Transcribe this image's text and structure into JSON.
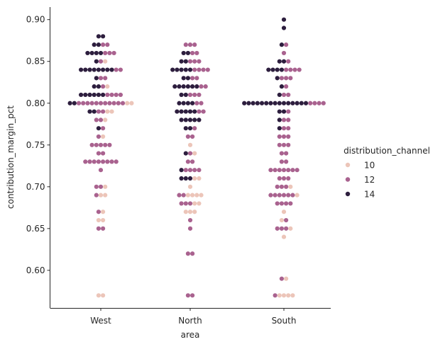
{
  "chart_data": {
    "type": "swarm",
    "xlabel": "area",
    "ylabel": "contribution_margin_pct",
    "categories": [
      "West",
      "North",
      "South"
    ],
    "ylim": [
      0.555,
      0.915
    ],
    "yticks": [
      0.6,
      0.65,
      0.7,
      0.75,
      0.8,
      0.85,
      0.9
    ],
    "ytick_labels": [
      "0.60",
      "0.65",
      "0.70",
      "0.75",
      "0.80",
      "0.85",
      "0.90"
    ],
    "legend": {
      "title": "distribution_channel",
      "placement": "right",
      "entries": [
        {
          "label": "10",
          "color": "#ecc5b9"
        },
        {
          "label": "12",
          "color": "#a9628f"
        },
        {
          "label": "14",
          "color": "#2d1e3e"
        }
      ]
    },
    "colors": {
      "10": "#ecc5b9",
      "12": "#a9628f",
      "14": "#2d1e3e"
    },
    "points": {
      "West": [
        [
          0.88,
          14
        ],
        [
          0.88,
          14
        ],
        [
          0.87,
          14
        ],
        [
          0.87,
          14
        ],
        [
          0.87,
          12
        ],
        [
          0.87,
          12
        ],
        [
          0.86,
          14
        ],
        [
          0.86,
          14
        ],
        [
          0.86,
          14
        ],
        [
          0.86,
          14
        ],
        [
          0.86,
          12
        ],
        [
          0.86,
          12
        ],
        [
          0.86,
          12
        ],
        [
          0.85,
          14
        ],
        [
          0.85,
          12
        ],
        [
          0.85,
          10
        ],
        [
          0.84,
          14
        ],
        [
          0.84,
          14
        ],
        [
          0.84,
          14
        ],
        [
          0.84,
          14
        ],
        [
          0.84,
          14
        ],
        [
          0.84,
          14
        ],
        [
          0.84,
          14
        ],
        [
          0.84,
          14
        ],
        [
          0.84,
          12
        ],
        [
          0.84,
          12
        ],
        [
          0.83,
          14
        ],
        [
          0.83,
          12
        ],
        [
          0.83,
          12
        ],
        [
          0.82,
          14
        ],
        [
          0.82,
          14
        ],
        [
          0.82,
          12
        ],
        [
          0.82,
          10
        ],
        [
          0.81,
          14
        ],
        [
          0.81,
          14
        ],
        [
          0.81,
          14
        ],
        [
          0.81,
          14
        ],
        [
          0.81,
          14
        ],
        [
          0.81,
          14
        ],
        [
          0.81,
          12
        ],
        [
          0.81,
          12
        ],
        [
          0.81,
          12
        ],
        [
          0.81,
          12
        ],
        [
          0.8,
          14
        ],
        [
          0.8,
          14
        ],
        [
          0.8,
          12
        ],
        [
          0.8,
          12
        ],
        [
          0.8,
          12
        ],
        [
          0.8,
          12
        ],
        [
          0.8,
          12
        ],
        [
          0.8,
          12
        ],
        [
          0.8,
          12
        ],
        [
          0.8,
          12
        ],
        [
          0.8,
          12
        ],
        [
          0.8,
          12
        ],
        [
          0.8,
          12
        ],
        [
          0.8,
          10
        ],
        [
          0.8,
          10
        ],
        [
          0.79,
          14
        ],
        [
          0.79,
          14
        ],
        [
          0.79,
          12
        ],
        [
          0.79,
          12
        ],
        [
          0.79,
          10
        ],
        [
          0.79,
          10
        ],
        [
          0.78,
          12
        ],
        [
          0.78,
          12
        ],
        [
          0.78,
          10
        ],
        [
          0.77,
          14
        ],
        [
          0.77,
          12
        ],
        [
          0.76,
          12
        ],
        [
          0.76,
          10
        ],
        [
          0.75,
          12
        ],
        [
          0.75,
          12
        ],
        [
          0.75,
          12
        ],
        [
          0.75,
          12
        ],
        [
          0.75,
          12
        ],
        [
          0.74,
          12
        ],
        [
          0.74,
          12
        ],
        [
          0.73,
          12
        ],
        [
          0.73,
          12
        ],
        [
          0.73,
          12
        ],
        [
          0.73,
          12
        ],
        [
          0.73,
          12
        ],
        [
          0.73,
          12
        ],
        [
          0.73,
          12
        ],
        [
          0.73,
          12
        ],
        [
          0.72,
          12
        ],
        [
          0.7,
          12
        ],
        [
          0.7,
          12
        ],
        [
          0.7,
          10
        ],
        [
          0.69,
          12
        ],
        [
          0.69,
          10
        ],
        [
          0.69,
          10
        ],
        [
          0.67,
          12
        ],
        [
          0.67,
          10
        ],
        [
          0.66,
          10
        ],
        [
          0.66,
          10
        ],
        [
          0.65,
          12
        ],
        [
          0.65,
          12
        ],
        [
          0.57,
          10
        ],
        [
          0.57,
          10
        ]
      ],
      "North": [
        [
          0.87,
          12
        ],
        [
          0.87,
          12
        ],
        [
          0.87,
          12
        ],
        [
          0.86,
          14
        ],
        [
          0.86,
          14
        ],
        [
          0.86,
          12
        ],
        [
          0.86,
          12
        ],
        [
          0.85,
          14
        ],
        [
          0.85,
          14
        ],
        [
          0.85,
          12
        ],
        [
          0.85,
          12
        ],
        [
          0.85,
          12
        ],
        [
          0.84,
          14
        ],
        [
          0.84,
          14
        ],
        [
          0.84,
          14
        ],
        [
          0.84,
          14
        ],
        [
          0.84,
          14
        ],
        [
          0.84,
          12
        ],
        [
          0.84,
          12
        ],
        [
          0.84,
          12
        ],
        [
          0.84,
          12
        ],
        [
          0.83,
          14
        ],
        [
          0.83,
          14
        ],
        [
          0.83,
          12
        ],
        [
          0.83,
          12
        ],
        [
          0.82,
          14
        ],
        [
          0.82,
          14
        ],
        [
          0.82,
          14
        ],
        [
          0.82,
          14
        ],
        [
          0.82,
          14
        ],
        [
          0.82,
          14
        ],
        [
          0.82,
          12
        ],
        [
          0.82,
          12
        ],
        [
          0.81,
          14
        ],
        [
          0.81,
          14
        ],
        [
          0.81,
          12
        ],
        [
          0.81,
          12
        ],
        [
          0.81,
          12
        ],
        [
          0.8,
          14
        ],
        [
          0.8,
          14
        ],
        [
          0.8,
          14
        ],
        [
          0.8,
          14
        ],
        [
          0.8,
          12
        ],
        [
          0.8,
          12
        ],
        [
          0.79,
          14
        ],
        [
          0.79,
          14
        ],
        [
          0.79,
          14
        ],
        [
          0.79,
          14
        ],
        [
          0.79,
          14
        ],
        [
          0.79,
          12
        ],
        [
          0.79,
          12
        ],
        [
          0.78,
          14
        ],
        [
          0.78,
          14
        ],
        [
          0.78,
          14
        ],
        [
          0.78,
          14
        ],
        [
          0.78,
          14
        ],
        [
          0.77,
          14
        ],
        [
          0.77,
          14
        ],
        [
          0.77,
          12
        ],
        [
          0.76,
          12
        ],
        [
          0.76,
          12
        ],
        [
          0.75,
          10
        ],
        [
          0.74,
          14
        ],
        [
          0.74,
          12
        ],
        [
          0.74,
          10
        ],
        [
          0.73,
          12
        ],
        [
          0.73,
          12
        ],
        [
          0.72,
          14
        ],
        [
          0.72,
          12
        ],
        [
          0.72,
          12
        ],
        [
          0.72,
          12
        ],
        [
          0.72,
          12
        ],
        [
          0.71,
          14
        ],
        [
          0.71,
          14
        ],
        [
          0.71,
          14
        ],
        [
          0.71,
          10
        ],
        [
          0.71,
          10
        ],
        [
          0.7,
          10
        ],
        [
          0.69,
          12
        ],
        [
          0.69,
          12
        ],
        [
          0.69,
          10
        ],
        [
          0.69,
          10
        ],
        [
          0.69,
          10
        ],
        [
          0.69,
          10
        ],
        [
          0.68,
          12
        ],
        [
          0.68,
          12
        ],
        [
          0.68,
          12
        ],
        [
          0.68,
          10
        ],
        [
          0.68,
          10
        ],
        [
          0.67,
          10
        ],
        [
          0.67,
          10
        ],
        [
          0.67,
          10
        ],
        [
          0.66,
          12
        ],
        [
          0.65,
          12
        ],
        [
          0.62,
          12
        ],
        [
          0.62,
          12
        ],
        [
          0.57,
          12
        ],
        [
          0.57,
          12
        ]
      ],
      "South": [
        [
          0.9,
          14
        ],
        [
          0.89,
          14
        ],
        [
          0.87,
          14
        ],
        [
          0.87,
          12
        ],
        [
          0.86,
          12
        ],
        [
          0.85,
          14
        ],
        [
          0.85,
          14
        ],
        [
          0.85,
          12
        ],
        [
          0.84,
          14
        ],
        [
          0.84,
          14
        ],
        [
          0.84,
          14
        ],
        [
          0.84,
          14
        ],
        [
          0.84,
          12
        ],
        [
          0.84,
          12
        ],
        [
          0.84,
          12
        ],
        [
          0.84,
          12
        ],
        [
          0.83,
          14
        ],
        [
          0.83,
          12
        ],
        [
          0.83,
          12
        ],
        [
          0.83,
          12
        ],
        [
          0.82,
          14
        ],
        [
          0.82,
          12
        ],
        [
          0.81,
          14
        ],
        [
          0.81,
          12
        ],
        [
          0.81,
          12
        ],
        [
          0.8,
          14
        ],
        [
          0.8,
          14
        ],
        [
          0.8,
          14
        ],
        [
          0.8,
          14
        ],
        [
          0.8,
          14
        ],
        [
          0.8,
          14
        ],
        [
          0.8,
          14
        ],
        [
          0.8,
          14
        ],
        [
          0.8,
          14
        ],
        [
          0.8,
          14
        ],
        [
          0.8,
          14
        ],
        [
          0.8,
          14
        ],
        [
          0.8,
          14
        ],
        [
          0.8,
          14
        ],
        [
          0.8,
          14
        ],
        [
          0.8,
          12
        ],
        [
          0.8,
          12
        ],
        [
          0.8,
          12
        ],
        [
          0.8,
          12
        ],
        [
          0.79,
          14
        ],
        [
          0.79,
          14
        ],
        [
          0.79,
          12
        ],
        [
          0.78,
          14
        ],
        [
          0.78,
          12
        ],
        [
          0.78,
          12
        ],
        [
          0.77,
          14
        ],
        [
          0.77,
          12
        ],
        [
          0.77,
          12
        ],
        [
          0.76,
          12
        ],
        [
          0.76,
          12
        ],
        [
          0.76,
          12
        ],
        [
          0.75,
          12
        ],
        [
          0.75,
          12
        ],
        [
          0.75,
          12
        ],
        [
          0.74,
          12
        ],
        [
          0.74,
          12
        ],
        [
          0.73,
          12
        ],
        [
          0.73,
          12
        ],
        [
          0.72,
          12
        ],
        [
          0.72,
          12
        ],
        [
          0.72,
          12
        ],
        [
          0.72,
          12
        ],
        [
          0.72,
          12
        ],
        [
          0.72,
          12
        ],
        [
          0.72,
          12
        ],
        [
          0.71,
          12
        ],
        [
          0.71,
          12
        ],
        [
          0.71,
          12
        ],
        [
          0.7,
          12
        ],
        [
          0.7,
          12
        ],
        [
          0.7,
          12
        ],
        [
          0.7,
          10
        ],
        [
          0.69,
          12
        ],
        [
          0.69,
          12
        ],
        [
          0.69,
          12
        ],
        [
          0.69,
          12
        ],
        [
          0.69,
          12
        ],
        [
          0.69,
          12
        ],
        [
          0.69,
          10
        ],
        [
          0.68,
          12
        ],
        [
          0.68,
          12
        ],
        [
          0.68,
          12
        ],
        [
          0.68,
          12
        ],
        [
          0.67,
          10
        ],
        [
          0.66,
          10
        ],
        [
          0.66,
          12
        ],
        [
          0.65,
          12
        ],
        [
          0.65,
          12
        ],
        [
          0.65,
          12
        ],
        [
          0.65,
          10
        ],
        [
          0.64,
          10
        ],
        [
          0.59,
          12
        ],
        [
          0.59,
          10
        ],
        [
          0.57,
          12
        ],
        [
          0.57,
          10
        ],
        [
          0.57,
          10
        ],
        [
          0.57,
          10
        ],
        [
          0.57,
          10
        ]
      ]
    }
  }
}
